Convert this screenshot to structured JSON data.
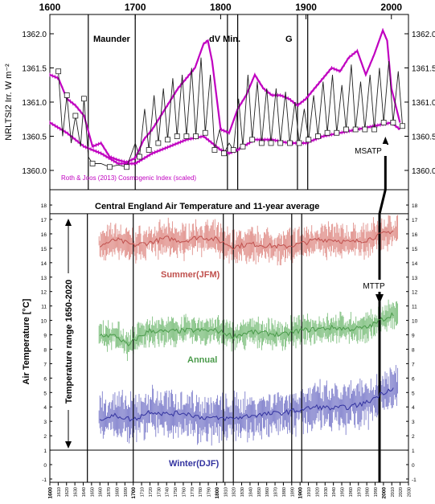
{
  "chart_data": [
    {
      "type": "line",
      "panel": "top",
      "ylabel": "NRLTSI2  Irr. W m⁻²",
      "xlim": [
        1600,
        2020
      ],
      "ylim": [
        1359.8,
        1362.3
      ],
      "top_ticks": [
        "1600",
        "1700",
        "1800",
        "1900",
        "2000"
      ],
      "y_ticks": [
        "1360.0",
        "1360.5",
        "1361.0",
        "1361.5",
        "1362.0"
      ],
      "annotations": [
        {
          "text": "Maunder",
          "x": 1652
        },
        {
          "text": "dV Min.",
          "x": 1790
        },
        {
          "text": "G",
          "x": 1884
        },
        {
          "text": "MSATP",
          "x": 1993
        }
      ],
      "vertical_lines": [
        1645,
        1700,
        1808,
        1820,
        1890,
        1902
      ],
      "legend_text": "Roth & Joos (2013) Cosmogenic Index (scaled)",
      "colors": {
        "ref": "#c000c0",
        "tsi": "#222222"
      },
      "series": [
        {
          "name": "Roth & Joos (2013) Cosmogenic Index (scaled)",
          "kind": "upper envelope",
          "x": [
            1600,
            1610,
            1620,
            1630,
            1640,
            1650,
            1660,
            1670,
            1680,
            1690,
            1700,
            1710,
            1720,
            1730,
            1740,
            1750,
            1760,
            1770,
            1780,
            1785,
            1790,
            1800,
            1810,
            1820,
            1830,
            1840,
            1850,
            1860,
            1870,
            1880,
            1890,
            1900,
            1910,
            1920,
            1930,
            1940,
            1950,
            1960,
            1970,
            1980,
            1990,
            1995,
            2000,
            2010
          ],
          "y": [
            1361.4,
            1361.35,
            1361.05,
            1360.95,
            1360.8,
            1360.35,
            1360.4,
            1360.2,
            1360.15,
            1360.12,
            1360.18,
            1360.45,
            1360.6,
            1360.8,
            1361.0,
            1361.2,
            1361.35,
            1361.5,
            1361.85,
            1361.9,
            1361.6,
            1360.6,
            1360.55,
            1360.9,
            1361.1,
            1361.4,
            1361.2,
            1361.1,
            1361.1,
            1361.05,
            1360.95,
            1361.05,
            1361.2,
            1361.35,
            1361.5,
            1361.45,
            1361.65,
            1361.75,
            1361.4,
            1361.7,
            1362.05,
            1361.9,
            1361.2,
            1360.7
          ]
        },
        {
          "name": "Roth & Joos (2013) Cosmogenic Index (scaled)",
          "kind": "lower envelope",
          "x": [
            1600,
            1620,
            1640,
            1660,
            1680,
            1700,
            1720,
            1740,
            1760,
            1780,
            1790,
            1800,
            1810,
            1820,
            1840,
            1860,
            1880,
            1900,
            1920,
            1940,
            1960,
            1980,
            2000,
            2010
          ],
          "y": [
            1360.7,
            1360.55,
            1360.35,
            1360.25,
            1360.1,
            1360.1,
            1360.25,
            1360.35,
            1360.45,
            1360.5,
            1360.4,
            1360.3,
            1360.25,
            1360.3,
            1360.45,
            1360.45,
            1360.4,
            1360.4,
            1360.5,
            1360.55,
            1360.6,
            1360.65,
            1360.7,
            1360.6
          ]
        },
        {
          "name": "NRLTSI2",
          "kind": "11-year cycle",
          "x": [
            1610,
            1615,
            1620,
            1625,
            1630,
            1636,
            1640,
            1645,
            1650,
            1660,
            1670,
            1680,
            1690,
            1700,
            1705,
            1711,
            1716,
            1722,
            1727,
            1733,
            1738,
            1744,
            1749,
            1755,
            1760,
            1766,
            1771,
            1777,
            1782,
            1788,
            1793,
            1799,
            1804,
            1810,
            1815,
            1821,
            1826,
            1832,
            1837,
            1843,
            1848,
            1854,
            1859,
            1865,
            1870,
            1876,
            1881,
            1887,
            1892,
            1898,
            1903,
            1909,
            1914,
            1920,
            1925,
            1931,
            1936,
            1942,
            1947,
            1953,
            1958,
            1964,
            1969,
            1975,
            1980,
            1986,
            1991,
            1997,
            2002,
            2008,
            2013
          ],
          "y": [
            1361.45,
            1360.5,
            1361.1,
            1360.4,
            1360.8,
            1360.35,
            1361.05,
            1360.2,
            1360.1,
            1360.1,
            1360.05,
            1360.08,
            1360.05,
            1360.4,
            1360.2,
            1360.9,
            1360.3,
            1361.1,
            1360.4,
            1361.2,
            1360.45,
            1361.35,
            1360.5,
            1361.4,
            1360.5,
            1361.5,
            1360.5,
            1361.65,
            1360.55,
            1361.4,
            1360.3,
            1360.6,
            1360.25,
            1360.4,
            1360.3,
            1361.05,
            1360.35,
            1361.4,
            1360.45,
            1361.3,
            1360.4,
            1361.2,
            1360.4,
            1361.2,
            1360.4,
            1361.15,
            1360.4,
            1361.0,
            1360.4,
            1360.9,
            1360.45,
            1361.1,
            1360.5,
            1361.3,
            1360.55,
            1361.4,
            1360.55,
            1361.25,
            1360.6,
            1361.55,
            1360.6,
            1361.3,
            1360.6,
            1361.4,
            1360.6,
            1361.5,
            1360.7,
            1361.6,
            1360.7,
            1361.45,
            1360.65
          ]
        }
      ]
    },
    {
      "type": "line",
      "panel": "bottom",
      "title": "Central England Air Temperature and 11-year average",
      "ylabel": "Air Temperature [°C]",
      "range_label": "Temperature range 1650-2020",
      "xlim": [
        1600,
        2030
      ],
      "ylim": [
        -1,
        18
      ],
      "x_ticks": [
        "1600",
        "1610",
        "1620",
        "1630",
        "1640",
        "1650",
        "1660",
        "1670",
        "1680",
        "1690",
        "1700",
        "1710",
        "1720",
        "1730",
        "1740",
        "1750",
        "1760",
        "1770",
        "1780",
        "1790",
        "1800",
        "1810",
        "1820",
        "1830",
        "1840",
        "1850",
        "1860",
        "1870",
        "1880",
        "1890",
        "1900",
        "1910",
        "1920",
        "1930",
        "1940",
        "1950",
        "1960",
        "1970",
        "1980",
        "1990",
        "2000",
        "2010",
        "2020",
        "2030"
      ],
      "x_ticks_bold": [
        "1600",
        "1700",
        "1800",
        "1900",
        "2000"
      ],
      "y_ticks": [
        "-1",
        "0",
        "1",
        "2",
        "3",
        "4",
        "5",
        "6",
        "7",
        "8",
        "9",
        "10",
        "11",
        "12",
        "13",
        "14",
        "15",
        "16",
        "17",
        "18"
      ],
      "range_lines": [
        1,
        17.4
      ],
      "annotations": [
        {
          "text": "MTTP",
          "x": 2000
        }
      ],
      "series": [
        {
          "name": "Summer(JFM)",
          "color": "#c0504d",
          "color_light": "#e39a95",
          "x": [
            1660,
            1680,
            1700,
            1720,
            1740,
            1760,
            1780,
            1800,
            1820,
            1840,
            1860,
            1880,
            1900,
            1920,
            1940,
            1960,
            1980,
            2000,
            2010
          ],
          "y": [
            15.2,
            15.6,
            15.2,
            15.4,
            15.7,
            15.5,
            15.8,
            15.6,
            15.1,
            15.3,
            15.2,
            15.1,
            15.3,
            15.6,
            15.6,
            15.4,
            15.6,
            16.0,
            16.2
          ]
        },
        {
          "name": "Annual",
          "color": "#4a9a4a",
          "color_light": "#8cc68c",
          "x": [
            1660,
            1680,
            1695,
            1700,
            1720,
            1740,
            1760,
            1780,
            1800,
            1820,
            1840,
            1860,
            1880,
            1900,
            1920,
            1940,
            1960,
            1980,
            2000,
            2010
          ],
          "y": [
            9.0,
            8.9,
            8.2,
            8.6,
            9.3,
            9.2,
            9.3,
            9.3,
            9.3,
            8.9,
            9.2,
            9.1,
            9.0,
            9.3,
            9.4,
            9.5,
            9.4,
            9.5,
            10.1,
            10.4
          ]
        },
        {
          "name": "Winter(DJF)",
          "color": "#3333a0",
          "color_light": "#8a8ad0",
          "x": [
            1660,
            1680,
            1700,
            1720,
            1740,
            1760,
            1780,
            1800,
            1820,
            1840,
            1860,
            1880,
            1900,
            1920,
            1940,
            1960,
            1980,
            2000,
            2010
          ],
          "y": [
            3.2,
            3.4,
            3.1,
            3.7,
            3.5,
            3.6,
            3.3,
            3.2,
            3.2,
            3.4,
            3.5,
            3.6,
            3.8,
            4.0,
            3.9,
            4.0,
            4.3,
            5.0,
            5.3
          ]
        }
      ]
    }
  ]
}
